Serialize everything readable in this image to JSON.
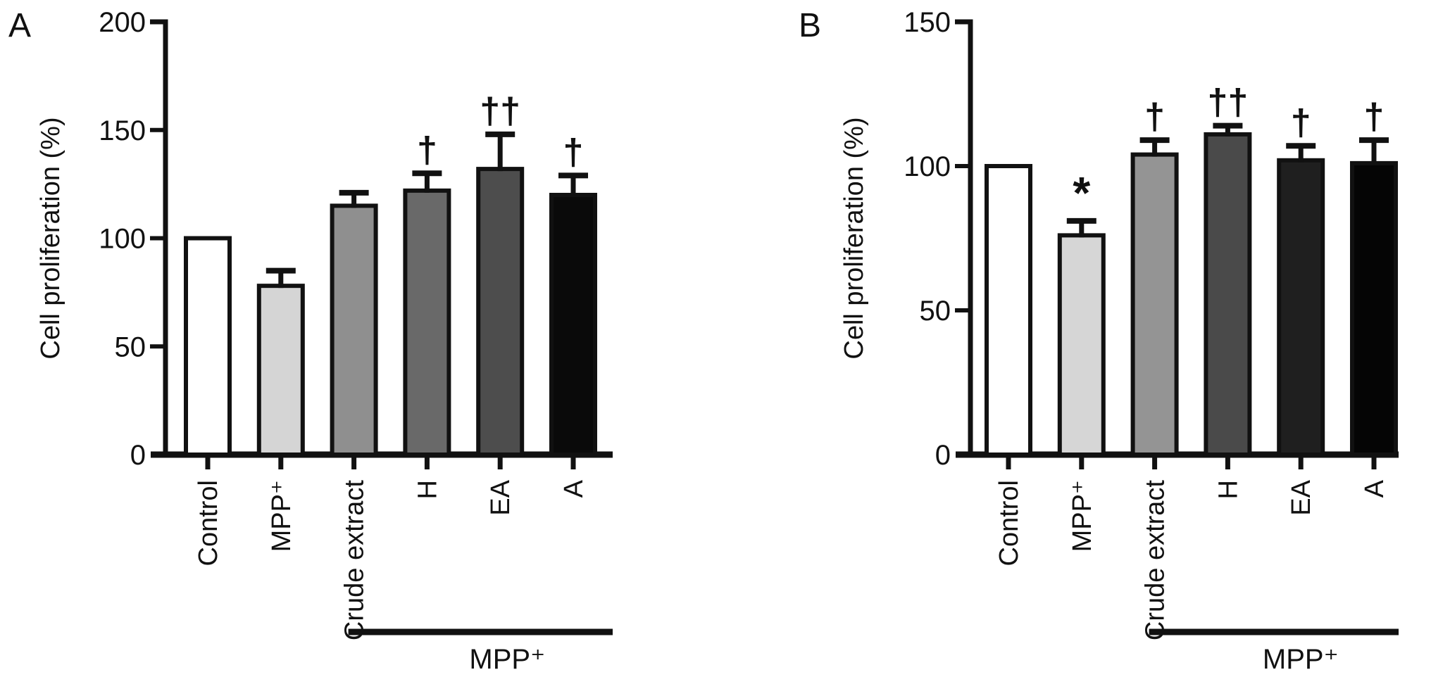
{
  "figure_background": "#ffffff",
  "ink_color": "#111111",
  "chart_data": [
    {
      "type": "bar",
      "panel_letter": "A",
      "title": "",
      "xlabel": "",
      "ylabel": "Cell proliferation (%)",
      "ylim": [
        0,
        200
      ],
      "yticks": [
        0,
        50,
        100,
        150,
        200
      ],
      "grid": "off",
      "legend": "none",
      "categories": [
        "Control",
        "MPP⁺",
        "Crude extract",
        "H",
        "EA",
        "A"
      ],
      "values": [
        100,
        78,
        115,
        122,
        132,
        120
      ],
      "errors": [
        0,
        7,
        6,
        8,
        16,
        9
      ],
      "sig_markers": [
        "",
        "",
        "",
        "†",
        "††",
        "†"
      ],
      "bar_colors": [
        "#ffffff",
        "#d5d5d5",
        "#8f8f8f",
        "#696969",
        "#4d4d4d",
        "#0a0a0a"
      ],
      "group_bracket": {
        "label": "MPP⁺",
        "from_category": "Crude extract",
        "to_category": "A",
        "from_index": 2,
        "to_index": 5
      }
    },
    {
      "type": "bar",
      "panel_letter": "B",
      "title": "",
      "xlabel": "",
      "ylabel": "Cell proliferation (%)",
      "ylim": [
        0,
        150
      ],
      "yticks": [
        0,
        50,
        100,
        150
      ],
      "grid": "off",
      "legend": "none",
      "categories": [
        "Control",
        "MPP⁺",
        "Crude extract",
        "H",
        "EA",
        "A"
      ],
      "values": [
        100,
        76,
        104,
        111,
        102,
        101
      ],
      "errors": [
        0,
        5,
        5,
        3,
        5,
        8
      ],
      "sig_markers": [
        "",
        "*",
        "†",
        "††",
        "†",
        "†"
      ],
      "bar_colors": [
        "#ffffff",
        "#d6d6d6",
        "#949494",
        "#4a4a4a",
        "#1f1f1f",
        "#050505"
      ],
      "group_bracket": {
        "label": "MPP⁺",
        "from_category": "Crude extract",
        "to_category": "A",
        "from_index": 2,
        "to_index": 5
      }
    }
  ]
}
